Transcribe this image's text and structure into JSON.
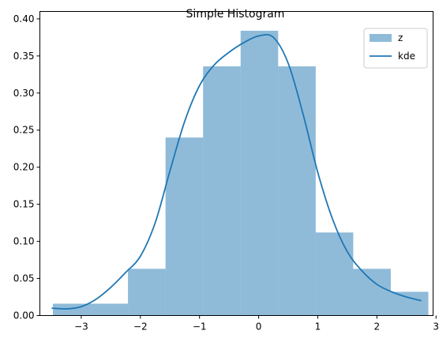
{
  "chart_data": {
    "type": "bar",
    "title": "Simple Histogram",
    "xlabel": "",
    "ylabel": "",
    "xlim": [
      -3.7,
      2.95
    ],
    "ylim": [
      0,
      0.41
    ],
    "xticks": [
      -3,
      -2,
      -1,
      0,
      1,
      2,
      3
    ],
    "xtick_labels": [
      "−3",
      "−2",
      "−1",
      "0",
      "1",
      "2",
      "3"
    ],
    "yticks": [
      0,
      0.05,
      0.1,
      0.15,
      0.2,
      0.25,
      0.3,
      0.35,
      0.4
    ],
    "ytick_labels": [
      "0.00",
      "0.05",
      "0.10",
      "0.15",
      "0.20",
      "0.25",
      "0.30",
      "0.35",
      "0.40"
    ],
    "grid": false,
    "legend_position": "top-right",
    "histogram": {
      "name": "z",
      "color": "#1f77b4",
      "alpha": 0.5,
      "bin_edges": [
        -3.48,
        -2.845,
        -2.21,
        -1.575,
        -0.94,
        -0.305,
        0.33,
        0.965,
        1.6,
        2.235,
        2.87
      ],
      "values": [
        0.016,
        0.016,
        0.063,
        0.24,
        0.336,
        0.384,
        0.336,
        0.112,
        0.063,
        0.032
      ]
    },
    "kde": {
      "name": "kde",
      "color": "#1f77b4",
      "x": [
        -3.5,
        -3.25,
        -3.0,
        -2.75,
        -2.5,
        -2.25,
        -2.0,
        -1.75,
        -1.5,
        -1.25,
        -1.0,
        -0.75,
        -0.5,
        -0.25,
        0.0,
        0.25,
        0.5,
        0.75,
        1.0,
        1.25,
        1.5,
        1.75,
        2.0,
        2.25,
        2.5,
        2.75
      ],
      "y": [
        0.01,
        0.009,
        0.012,
        0.022,
        0.038,
        0.058,
        0.08,
        0.125,
        0.195,
        0.262,
        0.31,
        0.338,
        0.355,
        0.368,
        0.377,
        0.375,
        0.34,
        0.272,
        0.193,
        0.13,
        0.086,
        0.06,
        0.042,
        0.032,
        0.025,
        0.02
      ]
    }
  }
}
